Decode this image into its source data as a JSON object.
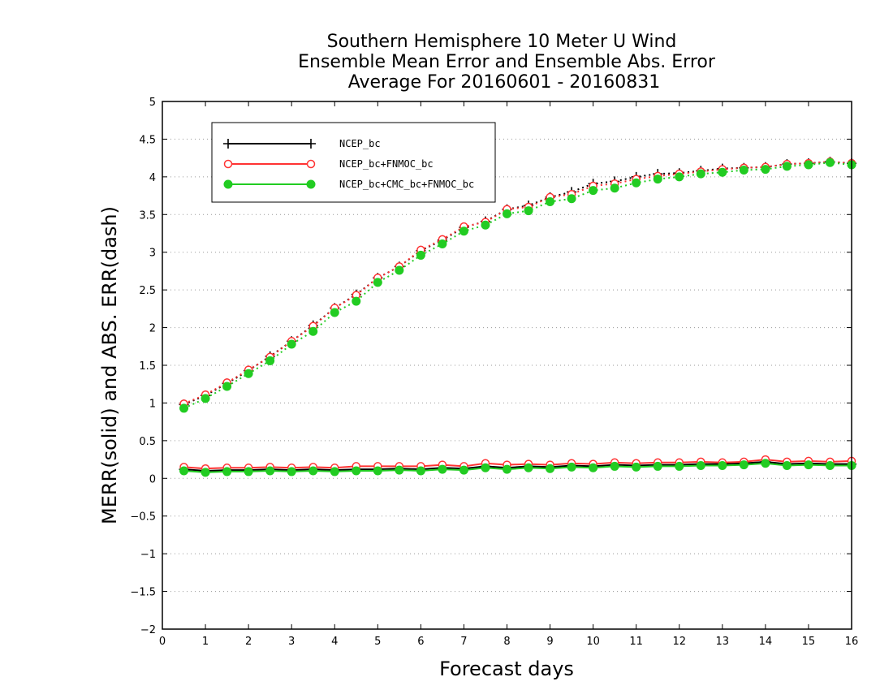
{
  "chart_data": {
    "type": "line",
    "title": [
      "Southern Hemisphere 10 Meter U Wind",
      "Ensemble Mean Error and Ensemble Abs. Error",
      "Average For 20160601 - 20160831"
    ],
    "xlabel": "Forecast days",
    "ylabel": "MERR(solid) and ABS. ERR(dash)",
    "xlim": [
      0,
      16
    ],
    "ylim": [
      -2,
      5
    ],
    "xticks": [
      0,
      1,
      2,
      3,
      4,
      5,
      6,
      7,
      8,
      9,
      10,
      11,
      12,
      13,
      14,
      15,
      16
    ],
    "yticks": [
      -2,
      -1.5,
      -1,
      -0.5,
      0,
      0.5,
      1,
      1.5,
      2,
      2.5,
      3,
      3.5,
      4,
      4.5,
      5
    ],
    "grid": true,
    "legend_position": "top-left",
    "x": [
      0.5,
      1,
      1.5,
      2,
      2.5,
      3,
      3.5,
      4,
      4.5,
      5,
      5.5,
      6,
      6.5,
      7,
      7.5,
      8,
      8.5,
      9,
      9.5,
      10,
      10.5,
      11,
      11.5,
      12,
      12.5,
      13,
      13.5,
      14,
      14.5,
      15,
      15.5,
      16
    ],
    "series": [
      {
        "name": "NCEP_bc",
        "color": "#000000",
        "marker": "plus",
        "merr": [
          0.12,
          0.1,
          0.11,
          0.11,
          0.12,
          0.11,
          0.12,
          0.11,
          0.12,
          0.12,
          0.13,
          0.12,
          0.14,
          0.13,
          0.16,
          0.14,
          0.16,
          0.15,
          0.17,
          0.16,
          0.18,
          0.17,
          0.18,
          0.18,
          0.19,
          0.19,
          0.2,
          0.22,
          0.19,
          0.2,
          0.19,
          0.19
        ],
        "abs_err": [
          0.98,
          1.1,
          1.26,
          1.43,
          1.62,
          1.82,
          2.03,
          2.26,
          2.44,
          2.66,
          2.81,
          3.02,
          3.16,
          3.33,
          3.41,
          3.57,
          3.62,
          3.73,
          3.8,
          3.91,
          3.94,
          4.0,
          4.04,
          4.05,
          4.08,
          4.11,
          4.12,
          4.13,
          4.17,
          4.18,
          4.2,
          4.18
        ]
      },
      {
        "name": "NCEP_bc+FNMOC_bc",
        "color": "#ff3333",
        "marker": "open-circle",
        "merr": [
          0.15,
          0.13,
          0.14,
          0.14,
          0.15,
          0.14,
          0.15,
          0.14,
          0.16,
          0.16,
          0.16,
          0.16,
          0.18,
          0.16,
          0.2,
          0.18,
          0.19,
          0.18,
          0.2,
          0.19,
          0.21,
          0.2,
          0.21,
          0.21,
          0.22,
          0.21,
          0.22,
          0.25,
          0.22,
          0.23,
          0.22,
          0.23
        ],
        "abs_err": [
          0.99,
          1.11,
          1.27,
          1.44,
          1.61,
          1.82,
          2.02,
          2.26,
          2.43,
          2.66,
          2.81,
          3.03,
          3.17,
          3.34,
          3.4,
          3.57,
          3.6,
          3.73,
          3.77,
          3.88,
          3.91,
          3.97,
          4.01,
          4.04,
          4.07,
          4.1,
          4.12,
          4.13,
          4.17,
          4.18,
          4.2,
          4.18
        ]
      },
      {
        "name": "NCEP_bc+CMC_bc+FNMOC_bc",
        "color": "#22cc22",
        "marker": "filled-circle",
        "merr": [
          0.1,
          0.08,
          0.09,
          0.09,
          0.1,
          0.09,
          0.1,
          0.09,
          0.1,
          0.1,
          0.11,
          0.1,
          0.12,
          0.11,
          0.14,
          0.12,
          0.14,
          0.13,
          0.15,
          0.14,
          0.16,
          0.15,
          0.16,
          0.16,
          0.17,
          0.17,
          0.18,
          0.2,
          0.17,
          0.18,
          0.17,
          0.17
        ],
        "abs_err": [
          0.93,
          1.06,
          1.22,
          1.39,
          1.56,
          1.78,
          1.95,
          2.2,
          2.35,
          2.6,
          2.76,
          2.96,
          3.11,
          3.28,
          3.36,
          3.51,
          3.55,
          3.67,
          3.71,
          3.82,
          3.85,
          3.92,
          3.97,
          4.0,
          4.04,
          4.06,
          4.09,
          4.1,
          4.14,
          4.16,
          4.19,
          4.16
        ]
      }
    ]
  }
}
